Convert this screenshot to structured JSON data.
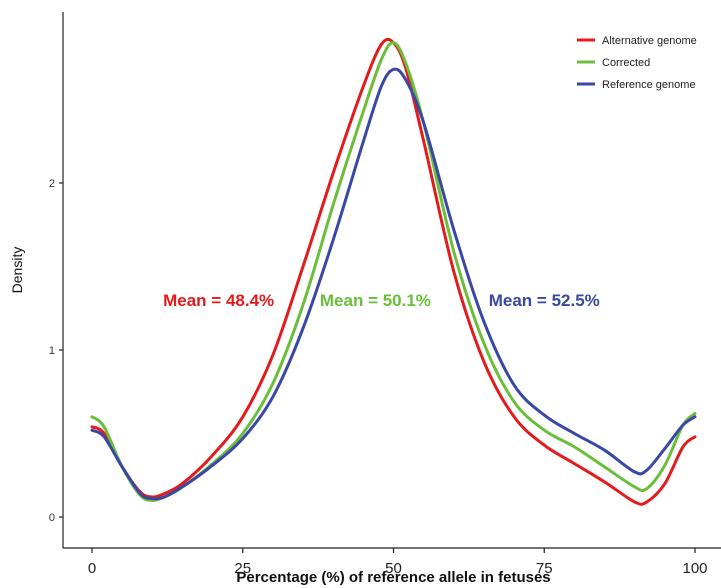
{
  "chart_data": {
    "type": "line",
    "xlabel": "Percentage (%) of reference allele in fetuses",
    "ylabel": "Density",
    "xlim": [
      0,
      100
    ],
    "ylim": [
      0,
      3
    ],
    "x_ticks": [
      0,
      25,
      50,
      75,
      100
    ],
    "y_ticks": [
      0,
      1,
      2
    ],
    "grid": false,
    "legend_position": "top-right",
    "series": [
      {
        "name": "Alternative genome",
        "color": "#e41a1c",
        "points": [
          [
            0,
            0.54
          ],
          [
            2,
            0.5
          ],
          [
            5,
            0.3
          ],
          [
            8,
            0.15
          ],
          [
            10,
            0.12
          ],
          [
            12,
            0.14
          ],
          [
            15,
            0.2
          ],
          [
            20,
            0.37
          ],
          [
            25,
            0.6
          ],
          [
            30,
            0.97
          ],
          [
            35,
            1.5
          ],
          [
            40,
            2.06
          ],
          [
            45,
            2.58
          ],
          [
            48,
            2.83
          ],
          [
            50,
            2.84
          ],
          [
            52,
            2.69
          ],
          [
            55,
            2.25
          ],
          [
            60,
            1.47
          ],
          [
            65,
            0.93
          ],
          [
            70,
            0.6
          ],
          [
            75,
            0.43
          ],
          [
            80,
            0.32
          ],
          [
            85,
            0.21
          ],
          [
            90,
            0.09
          ],
          [
            92,
            0.09
          ],
          [
            95,
            0.2
          ],
          [
            98,
            0.42
          ],
          [
            100,
            0.48
          ]
        ]
      },
      {
        "name": "Corrected",
        "color": "#6abf3a",
        "points": [
          [
            0,
            0.6
          ],
          [
            2,
            0.54
          ],
          [
            5,
            0.3
          ],
          [
            8,
            0.13
          ],
          [
            10,
            0.1
          ],
          [
            12,
            0.12
          ],
          [
            15,
            0.18
          ],
          [
            20,
            0.32
          ],
          [
            25,
            0.5
          ],
          [
            30,
            0.8
          ],
          [
            35,
            1.27
          ],
          [
            40,
            1.87
          ],
          [
            45,
            2.43
          ],
          [
            48,
            2.74
          ],
          [
            50,
            2.84
          ],
          [
            52,
            2.72
          ],
          [
            55,
            2.36
          ],
          [
            60,
            1.59
          ],
          [
            65,
            1.04
          ],
          [
            70,
            0.69
          ],
          [
            75,
            0.52
          ],
          [
            80,
            0.42
          ],
          [
            85,
            0.3
          ],
          [
            90,
            0.18
          ],
          [
            92,
            0.17
          ],
          [
            95,
            0.31
          ],
          [
            98,
            0.55
          ],
          [
            100,
            0.62
          ]
        ]
      },
      {
        "name": "Reference genome",
        "color": "#3948a6",
        "points": [
          [
            0,
            0.52
          ],
          [
            2,
            0.48
          ],
          [
            5,
            0.3
          ],
          [
            8,
            0.14
          ],
          [
            10,
            0.11
          ],
          [
            12,
            0.12
          ],
          [
            15,
            0.18
          ],
          [
            20,
            0.31
          ],
          [
            25,
            0.47
          ],
          [
            30,
            0.72
          ],
          [
            35,
            1.13
          ],
          [
            40,
            1.66
          ],
          [
            45,
            2.25
          ],
          [
            48,
            2.58
          ],
          [
            50,
            2.68
          ],
          [
            52,
            2.62
          ],
          [
            55,
            2.36
          ],
          [
            60,
            1.72
          ],
          [
            65,
            1.17
          ],
          [
            70,
            0.79
          ],
          [
            75,
            0.61
          ],
          [
            80,
            0.5
          ],
          [
            85,
            0.4
          ],
          [
            90,
            0.27
          ],
          [
            92,
            0.28
          ],
          [
            95,
            0.41
          ],
          [
            98,
            0.55
          ],
          [
            100,
            0.6
          ]
        ]
      }
    ],
    "annotations": [
      {
        "text": "Mean = 48.4%",
        "color": "#e41a1c",
        "x": 21,
        "y": 1.3
      },
      {
        "text": "Mean = 50.1%",
        "color": "#6abf3a",
        "x": 47,
        "y": 1.3
      },
      {
        "text": "Mean = 52.5%",
        "color": "#3948a6",
        "x": 75,
        "y": 1.3
      }
    ]
  }
}
